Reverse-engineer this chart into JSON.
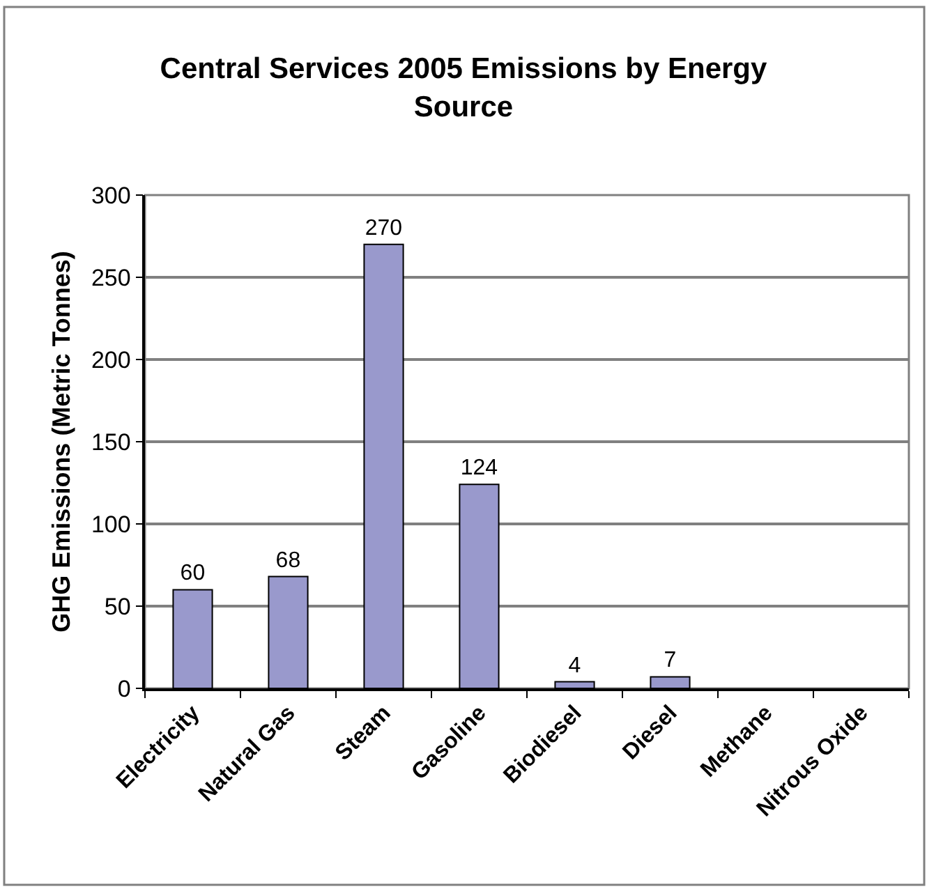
{
  "chart_data": {
    "type": "bar",
    "title": "Central Services 2005 Emissions by Energy Source",
    "ylabel": "GHG Emissions (Metric Tonnes)",
    "categories": [
      "Electricity",
      "Natural Gas",
      "Steam",
      "Gasoline",
      "Biodiesel",
      "Diesel",
      "Methane",
      "Nitrous Oxide"
    ],
    "values": [
      60,
      68,
      270,
      124,
      4,
      7,
      null,
      null
    ],
    "color": "#9999cc",
    "ylim": [
      0,
      300
    ],
    "yticks": [
      0,
      50,
      100,
      150,
      200,
      250,
      300
    ],
    "grid": "y",
    "data_labels": true
  }
}
